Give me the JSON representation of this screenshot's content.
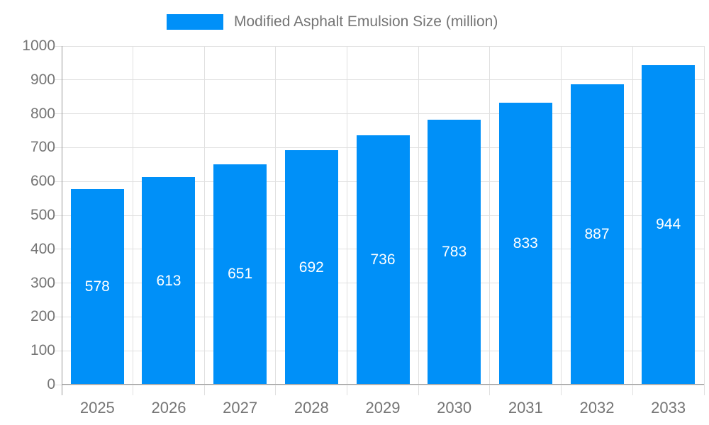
{
  "chart_data": {
    "type": "bar",
    "title": "Modified Asphalt Emulsion Size (million)",
    "series_name": "Modified Asphalt Emulsion Size (million)",
    "categories": [
      "2025",
      "2026",
      "2027",
      "2028",
      "2029",
      "2030",
      "2031",
      "2032",
      "2033"
    ],
    "values": [
      578,
      613,
      651,
      692,
      736,
      783,
      833,
      887,
      944
    ],
    "xlabel": "",
    "ylabel": "",
    "ylim": [
      0,
      1000
    ],
    "y_ticks": [
      0,
      100,
      200,
      300,
      400,
      500,
      600,
      700,
      800,
      900,
      1000
    ],
    "grid": "horizontal and vertical gridlines",
    "legend_position": "top-center",
    "value_labels": "inside bar, vertically centered, white",
    "colors": {
      "bar": "#0090f8",
      "grid": "#e0e0e0",
      "axis": "#999999",
      "text": "#757575",
      "value_label": "#ffffff",
      "background": "#ffffff"
    }
  }
}
